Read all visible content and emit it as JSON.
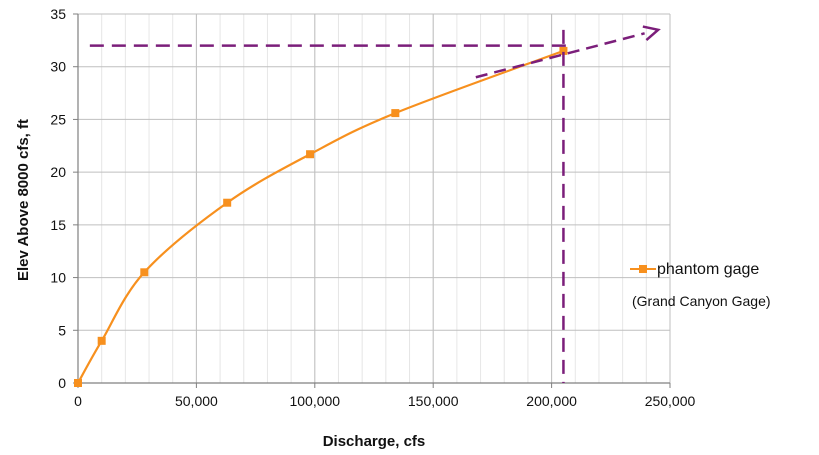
{
  "chart_data": {
    "type": "line",
    "title": "",
    "xlabel": "Discharge, cfs",
    "ylabel": "Elev Above 8000 cfs,  ft",
    "xlim": [
      0,
      250000
    ],
    "ylim": [
      0,
      35
    ],
    "x_ticks": [
      0,
      50000,
      100000,
      150000,
      200000,
      250000
    ],
    "x_tick_labels": [
      "0",
      "50,000",
      "100,000",
      "150,000",
      "200,000",
      "250,000"
    ],
    "y_ticks": [
      0,
      5,
      10,
      15,
      20,
      25,
      30,
      35
    ],
    "y_tick_labels": [
      "0",
      "5",
      "10",
      "15",
      "20",
      "25",
      "30",
      "35"
    ],
    "grid": true,
    "legend_position": "right",
    "series": [
      {
        "name": "phantom gage",
        "color": "#f7901e",
        "marker": "square",
        "x": [
          0,
          10000,
          28000,
          63000,
          98000,
          134000,
          205000
        ],
        "y": [
          0,
          4.0,
          10.5,
          17.1,
          21.7,
          25.6,
          31.5
        ]
      }
    ],
    "legend_note": "(Grand Canyon Gage)",
    "annotations": {
      "color": "#7b1e7a",
      "horizontal_dashed_y": 32,
      "horizontal_dashed_x_range": [
        5000,
        208000
      ],
      "vertical_dashed_x": 205000,
      "vertical_dashed_y_range": [
        0,
        33.5
      ],
      "extrapolation_arrow": {
        "from": [
          168000,
          29.0
        ],
        "to": [
          245000,
          33.5
        ]
      }
    }
  }
}
